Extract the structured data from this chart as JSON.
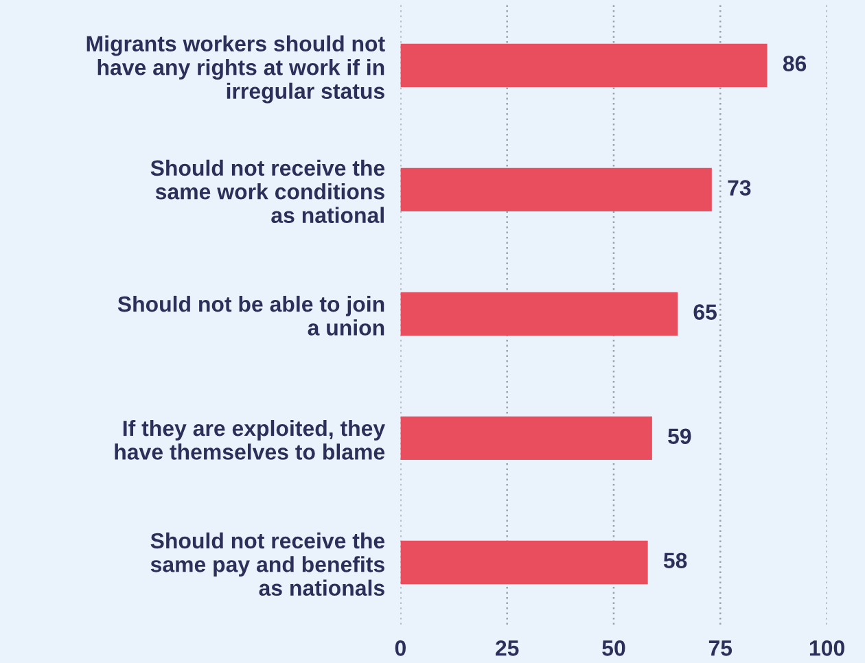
{
  "chart_data": {
    "type": "bar",
    "orientation": "horizontal",
    "categories": [
      "Migrants workers should not\nhave any rights at work if in\nirregular status",
      "Should not receive the\nsame work conditions\nas national",
      "Should not be able to join\na union",
      "If they are exploited, they\nhave themselves to blame",
      "Should not receive the\nsame pay and benefits\nas nationals"
    ],
    "values": [
      86,
      73,
      65,
      59,
      58
    ],
    "color": "#e94e5e",
    "xlim": [
      0,
      100
    ],
    "xticks": [
      0,
      25,
      50,
      75,
      100
    ],
    "grid": "x",
    "data_labels": true
  }
}
